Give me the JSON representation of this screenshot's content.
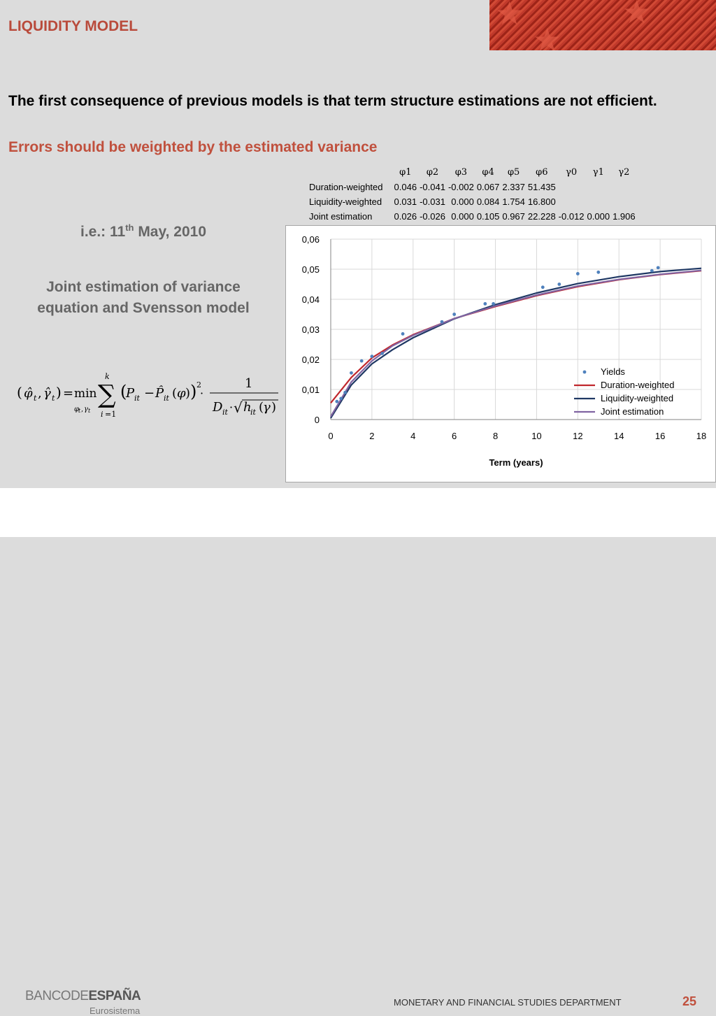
{
  "header": {
    "title": "LIQUIDITY MODEL"
  },
  "body": {
    "headline": "The first consequence of previous models is that term structure estimations are not efficient.",
    "subhead": "Errors should be weighted by the estimated variance",
    "date_prefix": "i.e.: 11",
    "date_sup": "th",
    "date_suffix": " May, 2010",
    "note": "Joint estimation of variance equation and Svensson model"
  },
  "param_table": {
    "columns": [
      "φ1",
      "φ2",
      "φ3",
      "φ4",
      "φ5",
      "φ6",
      "γ0",
      "γ1",
      "γ2"
    ],
    "rows": [
      {
        "label": "Duration-weighted",
        "values": [
          "0.046",
          "-0.041",
          "-0.002",
          "0.067",
          "2.337",
          "51.435",
          "",
          "",
          ""
        ]
      },
      {
        "label": "Liquidity-weighted",
        "values": [
          "0.031",
          "-0.031",
          "0.000",
          "0.084",
          "1.754",
          "16.800",
          "",
          "",
          ""
        ]
      },
      {
        "label": "Joint estimation",
        "values": [
          "0.026",
          "-0.026",
          "0.000",
          "0.105",
          "0.967",
          "22.228",
          "-0.012",
          "0.000",
          "1.906"
        ]
      }
    ]
  },
  "chart_data": {
    "type": "line",
    "xlabel": "Term (years)",
    "ylabel": "",
    "xlim": [
      0,
      18
    ],
    "ylim": [
      0,
      0.06
    ],
    "x_ticks": [
      "0",
      "2",
      "4",
      "6",
      "8",
      "10",
      "12",
      "14",
      "16",
      "18"
    ],
    "y_ticks": [
      "0",
      "0,01",
      "0,02",
      "0,03",
      "0,04",
      "0,05",
      "0,06"
    ],
    "grid": true,
    "legend_position": "bottom-right",
    "scatter": {
      "name": "Yields",
      "color": "#4f81bd",
      "points": [
        [
          0.3,
          0.006
        ],
        [
          0.5,
          0.007
        ],
        [
          0.7,
          0.009
        ],
        [
          1.0,
          0.0155
        ],
        [
          1.5,
          0.0195
        ],
        [
          2.0,
          0.021
        ],
        [
          2.5,
          0.022
        ],
        [
          3.5,
          0.0285
        ],
        [
          5.4,
          0.0325
        ],
        [
          6.0,
          0.035
        ],
        [
          7.5,
          0.0385
        ],
        [
          7.9,
          0.0385
        ],
        [
          10.3,
          0.044
        ],
        [
          11.1,
          0.045
        ],
        [
          12.0,
          0.0485
        ],
        [
          13.0,
          0.049
        ],
        [
          15.6,
          0.0495
        ],
        [
          15.9,
          0.0505
        ]
      ]
    },
    "series": [
      {
        "name": "Duration-weighted",
        "color": "#c0272d",
        "x": [
          0,
          1,
          2,
          3,
          4,
          6,
          8,
          10,
          12,
          14,
          16,
          18
        ],
        "values": [
          0.0055,
          0.014,
          0.0205,
          0.0248,
          0.0282,
          0.0336,
          0.0376,
          0.0412,
          0.0442,
          0.0465,
          0.0482,
          0.0495
        ]
      },
      {
        "name": "Liquidity-weighted",
        "color": "#1f3864",
        "x": [
          0,
          1,
          2,
          3,
          4,
          6,
          8,
          10,
          12,
          14,
          16,
          18
        ],
        "values": [
          0.0005,
          0.0115,
          0.0185,
          0.0232,
          0.0272,
          0.0335,
          0.0382,
          0.0421,
          0.0452,
          0.0475,
          0.0492,
          0.0503
        ]
      },
      {
        "name": "Joint estimation",
        "color": "#8064a2",
        "x": [
          0,
          1,
          2,
          3,
          4,
          6,
          8,
          10,
          12,
          14,
          16,
          18
        ],
        "values": [
          0.001,
          0.0125,
          0.0195,
          0.0245,
          0.028,
          0.0336,
          0.0378,
          0.0414,
          0.0444,
          0.0466,
          0.0483,
          0.0496
        ]
      }
    ]
  },
  "footer": {
    "logo_main": "BANCO",
    "logo_de": "DE",
    "logo_bold": "ESPAÑA",
    "logo_sub": "Eurosistema",
    "department": "MONETARY AND FINANCIAL STUDIES DEPARTMENT",
    "page_number": "25"
  }
}
